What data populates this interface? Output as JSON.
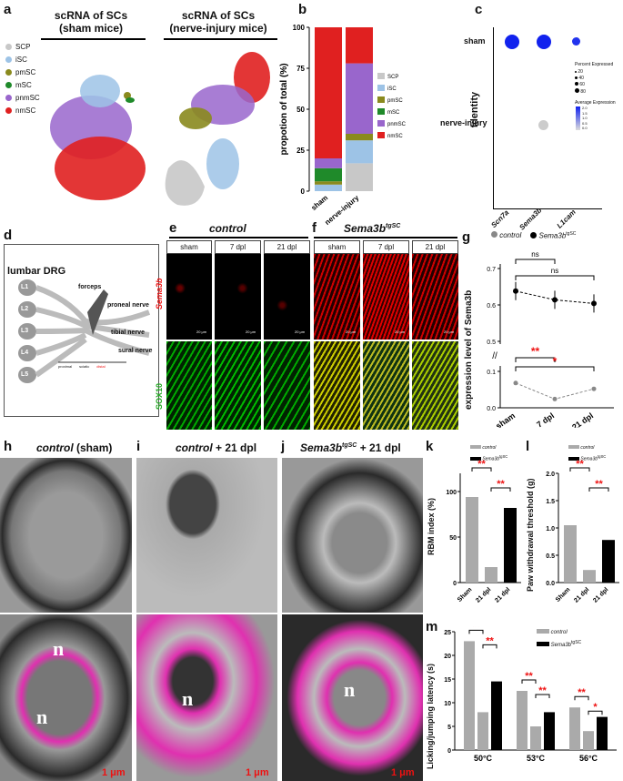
{
  "panels": {
    "a": {
      "label": "a",
      "title_sham": "scRNA of SCs\n(sham mice)",
      "title_injury": "scRNA of SCs\n(nerve-injury mice)",
      "legend": [
        {
          "name": "SCP",
          "color": "#c8c8c8"
        },
        {
          "name": "iSC",
          "color": "#9dc3e6"
        },
        {
          "name": "pmSC",
          "color": "#8a8a1e"
        },
        {
          "name": "mSC",
          "color": "#1f8a2a"
        },
        {
          "name": "pnmSC",
          "color": "#9966cc"
        },
        {
          "name": "nmSC",
          "color": "#e02020"
        }
      ]
    },
    "b": {
      "label": "b"
    },
    "c": {
      "label": "c",
      "yaxis": "Identity",
      "rows": [
        "sham",
        "nerve-injury"
      ],
      "genes": [
        "Scn7a",
        "Sema3b",
        "L1cam"
      ],
      "size_legend_title": "Percent Expressed",
      "size_legend_vals": [
        "20",
        "40",
        "60",
        "80"
      ],
      "color_legend_title": "Average Expression",
      "color_legend_vals": [
        "2.0",
        "1.5",
        "1.0",
        "0.5",
        "0.0"
      ]
    },
    "d": {
      "label": "d",
      "title": "lumbar DRG",
      "ganglia": [
        "L1",
        "L2",
        "L3",
        "L4",
        "L5"
      ],
      "nerves": [
        "proneal nerve",
        "tibial nerve",
        "sural nerve"
      ],
      "forceps": "forceps",
      "axis_labels": [
        "proximal",
        "sciatic",
        "distal"
      ]
    },
    "e": {
      "label": "e",
      "title": "control",
      "cols": [
        "sham",
        "7 dpl",
        "21 dpl"
      ],
      "row1": "Sema3b",
      "row2": "SOX10",
      "scale": "20 μm"
    },
    "f": {
      "label": "f",
      "title_main": "Sema3b",
      "title_sup": "tgSC",
      "cols": [
        "sham",
        "7 dpl",
        "21 dpl"
      ],
      "scale": "20 μm"
    },
    "g": {
      "label": "g",
      "legend_control": "control",
      "legend_tg": "Sema3b",
      "legend_tg_sup": "tgSC",
      "ylabel": "expression level of Sema3b",
      "ns1": "ns",
      "ns2": "ns",
      "sig1": "**",
      "sig2": "*",
      "yticks_upper": [
        "0.7",
        "0.6",
        "0.5"
      ],
      "yticks_lower": [
        "0.1",
        "0.0"
      ]
    },
    "h": {
      "label": "h",
      "title_italic": "control",
      "title_rest": "(sham)",
      "n": "n",
      "scale": "1 μm"
    },
    "i": {
      "label": "i",
      "title_italic": "control",
      "title_rest": "+ 21 dpl",
      "n": "n",
      "scale": "1 μm"
    },
    "j": {
      "label": "j",
      "title_main": "Sema3b",
      "title_sup": "tgSC",
      "title_rest": "+ 21 dpl",
      "n": "n",
      "scale": "1 μm"
    },
    "k": {
      "label": "k",
      "legend": [
        "control",
        "Sema3b"
      ],
      "legend_sup": "tgSC",
      "ylabel": "RBM index (%)",
      "sig": [
        "**",
        "**"
      ]
    },
    "l": {
      "label": "l",
      "legend": [
        "control",
        "Sema3b"
      ],
      "legend_sup": "tgSC",
      "ylabel": "Paw withdrawal threshold (g)",
      "sig": [
        "**",
        "**"
      ]
    },
    "m": {
      "label": "m",
      "legend": [
        "control",
        "Sema3b"
      ],
      "legend_sup": "tgSC",
      "ylabel": "Licking/jumping latency (s)",
      "groups": [
        "50°C",
        "53°C",
        "56°C"
      ],
      "sig": [
        "**",
        "**",
        "**",
        "**",
        "**",
        "*"
      ]
    }
  },
  "chart_data": [
    {
      "type": "bar",
      "panel": "b",
      "ylabel": "propotion of total (%)",
      "categories": [
        "sham",
        "nerve-injury"
      ],
      "ylim": [
        0,
        100
      ],
      "yticks": [
        0,
        25,
        50,
        75,
        100
      ],
      "stacked": true,
      "series": [
        {
          "name": "SCP",
          "color": "#c8c8c8",
          "values": [
            0,
            17
          ]
        },
        {
          "name": "iSC",
          "color": "#9dc3e6",
          "values": [
            4,
            14
          ]
        },
        {
          "name": "pmSC",
          "color": "#8a8a1e",
          "values": [
            2,
            4
          ]
        },
        {
          "name": "mSC",
          "color": "#1f8a2a",
          "values": [
            8,
            0
          ]
        },
        {
          "name": "pnmSC",
          "color": "#9966cc",
          "values": [
            6,
            43
          ]
        },
        {
          "name": "nmSC",
          "color": "#e02020",
          "values": [
            80,
            22
          ]
        }
      ]
    },
    {
      "type": "line",
      "panel": "g",
      "categories": [
        "sham",
        "7 dpl",
        "21 dpl"
      ],
      "series": [
        {
          "name": "Sema3b tgSC",
          "values": [
            0.638,
            0.614,
            0.604
          ]
        },
        {
          "name": "control",
          "values": [
            0.068,
            0.024,
            0.052
          ]
        }
      ]
    },
    {
      "type": "bar",
      "panel": "k",
      "categories": [
        "Sham",
        "21 dpl",
        "21 dpl"
      ],
      "ylim": [
        0,
        120
      ],
      "yticks": [
        0,
        50,
        100
      ],
      "values": [
        94,
        17,
        82
      ],
      "groups": [
        "control",
        "control",
        "Sema3b tgSC"
      ]
    },
    {
      "type": "bar",
      "panel": "l",
      "categories": [
        "Sham",
        "21 dpl",
        "21 dpl"
      ],
      "ylim": [
        0,
        2.0
      ],
      "yticks": [
        0.0,
        0.5,
        1.0,
        1.5,
        2.0
      ],
      "values": [
        1.05,
        0.23,
        0.78
      ],
      "groups": [
        "control",
        "control",
        "Sema3b tgSC"
      ]
    },
    {
      "type": "bar",
      "panel": "m",
      "categories": [
        "50°C",
        "53°C",
        "56°C"
      ],
      "ylim": [
        0,
        25
      ],
      "yticks": [
        0,
        5,
        10,
        15,
        20,
        25
      ],
      "series": [
        {
          "name": "control (sham)",
          "values": [
            23,
            12.5,
            9
          ]
        },
        {
          "name": "control (21 dpl)",
          "values": [
            8,
            5,
            4
          ]
        },
        {
          "name": "Sema3b tgSC (21 dpl)",
          "values": [
            14.5,
            8,
            7
          ]
        }
      ]
    }
  ]
}
